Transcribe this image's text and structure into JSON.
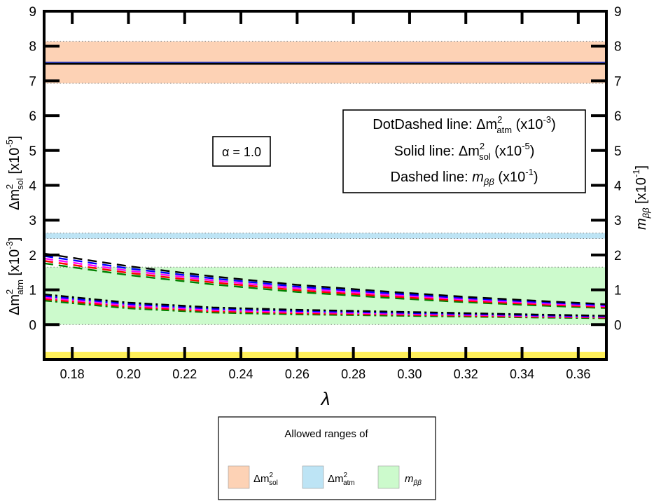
{
  "chart_data": {
    "type": "line",
    "x_axis": {
      "label": "λ",
      "range": [
        0.17,
        0.37
      ],
      "ticks": [
        0.18,
        0.2,
        0.22,
        0.24,
        0.26,
        0.28,
        0.3,
        0.32,
        0.34,
        0.36
      ],
      "tick_labels": [
        "0.18",
        "0.20",
        "0.22",
        "0.24",
        "0.26",
        "0.28",
        "0.30",
        "0.32",
        "0.34",
        "0.36"
      ]
    },
    "y_axis": {
      "range": [
        -1,
        9
      ],
      "ticks": [
        0,
        1,
        2,
        3,
        4,
        5,
        6,
        7,
        8,
        9
      ],
      "tick_labels": [
        "0",
        "1",
        "2",
        "3",
        "4",
        "5",
        "6",
        "7",
        "8",
        "9"
      ],
      "left_label_upper": {
        "base": "Δm",
        "sup": "2",
        "sub": "sol",
        "unit": " [x10",
        "exp": "-5",
        "close": "]"
      },
      "left_label_lower": {
        "base": "Δm",
        "sup": "2",
        "sub": "atm",
        "unit": " [x10",
        "exp": "-3",
        "close": "]"
      },
      "right_label": {
        "base": "m",
        "sub": "ββ",
        "unit": " [x10",
        "exp": "-1",
        "close": "]"
      }
    },
    "bands": [
      {
        "name": "Δm2_sol",
        "ymin": 6.93,
        "ymax": 8.13,
        "color": "#fdd2b5"
      },
      {
        "name": "Δm2_atm",
        "ymin": 2.47,
        "ymax": 2.63,
        "color": "#bde4f5"
      },
      {
        "name": "m_bb",
        "ymin": 0.0,
        "ymax": 1.65,
        "color": "#ccfacc"
      },
      {
        "name": "yellow",
        "ymin": -1.0,
        "ymax": -0.78,
        "color": "#fff05a"
      }
    ],
    "series_colors": [
      "#000000",
      "#0000ff",
      "#ff00ff",
      "#ff0000",
      "#008000"
    ],
    "series": [
      {
        "name": "solid_dm2_sol",
        "style": "solid",
        "x": [
          0.17,
          0.37
        ],
        "values": [
          7.49,
          7.49
        ]
      },
      {
        "name": "dashed_mbb",
        "style": "dashed",
        "x": [
          0.17,
          0.2,
          0.23,
          0.26,
          0.29,
          0.32,
          0.35,
          0.37
        ],
        "values": [
          1.9,
          1.55,
          1.27,
          1.04,
          0.87,
          0.72,
          0.6,
          0.53
        ]
      },
      {
        "name": "dotdashed_dm2_atm",
        "style": "dotdashed",
        "x": [
          0.17,
          0.2,
          0.23,
          0.26,
          0.29,
          0.32,
          0.35,
          0.37
        ],
        "values": [
          0.78,
          0.55,
          0.42,
          0.36,
          0.32,
          0.28,
          0.24,
          0.22
        ]
      }
    ],
    "annotation": {
      "alpha": "α = 1.0"
    },
    "info_box": {
      "line1": {
        "prefix": "DotDashed line: Δm",
        "sup": "2",
        "sub": "atm",
        "unit": " (x10",
        "exp": "-3",
        "close": ")"
      },
      "line2": {
        "prefix": "Solid line: Δm",
        "sup": "2",
        "sub": "sol",
        "unit": " (x10",
        "exp": "-5",
        "close": ")"
      },
      "line3": {
        "prefix": "Dashed line: ",
        "italic": "m",
        "sub": "ββ",
        "unit": " (x10",
        "exp": "-1",
        "close": ")"
      }
    },
    "legend": {
      "title": "Allowed ranges of",
      "entries": [
        {
          "base": "Δm",
          "sup": "2",
          "sub": "sol",
          "color": "#fdd2b5"
        },
        {
          "base": "Δm",
          "sup": "2",
          "sub": "atm",
          "color": "#bde4f5"
        },
        {
          "base": "m",
          "sup": "",
          "sub": "ββ",
          "color": "#ccfacc"
        }
      ]
    }
  }
}
